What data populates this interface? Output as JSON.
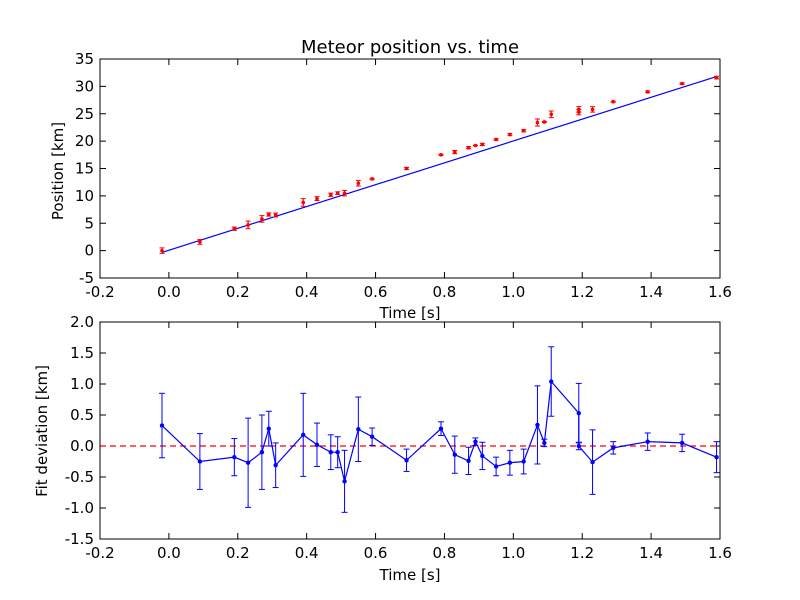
{
  "chart_data": [
    {
      "type": "scatter",
      "title": "Meteor position vs. time",
      "xlabel": "Time [s]",
      "ylabel": "Position [km]",
      "xlim": [
        -0.2,
        1.6
      ],
      "ylim": [
        -5,
        35
      ],
      "xticks": [
        "-0.2",
        "0.0",
        "0.2",
        "0.4",
        "0.6",
        "0.8",
        "1.0",
        "1.2",
        "1.4",
        "1.6"
      ],
      "yticks": [
        "-5",
        "0",
        "5",
        "10",
        "15",
        "20",
        "25",
        "30",
        "35"
      ],
      "grid": false,
      "colors": {
        "points": "#ff0000",
        "fit": "#0000ff"
      },
      "fit_line": {
        "x": [
          -0.02,
          1.59
        ],
        "y": [
          -0.33,
          31.8
        ]
      },
      "series": [
        {
          "x": [
            -0.02,
            0.09,
            0.19,
            0.23,
            0.27,
            0.29,
            0.31,
            0.39,
            0.43,
            0.47,
            0.49,
            0.51,
            0.55,
            0.59,
            0.69,
            0.79,
            0.83,
            0.87,
            0.89,
            0.91,
            0.95,
            0.99,
            1.03,
            1.07,
            1.09,
            1.11,
            1.19,
            1.19,
            1.23,
            1.29,
            1.39,
            1.49,
            1.59
          ],
          "y": [
            0.0,
            1.6,
            4.0,
            4.7,
            5.8,
            6.6,
            6.5,
            8.8,
            9.5,
            10.2,
            10.5,
            10.5,
            12.3,
            13.1,
            15.0,
            17.5,
            18.0,
            18.8,
            19.2,
            19.4,
            20.3,
            21.2,
            21.9,
            23.4,
            23.5,
            24.9,
            25.3,
            25.8,
            25.8,
            27.2,
            29.0,
            30.5,
            31.6
          ],
          "errors": [
            0.5,
            0.45,
            0.3,
            0.7,
            0.6,
            0.3,
            0.35,
            0.7,
            0.35,
            0.3,
            0.25,
            0.5,
            0.5,
            0.15,
            0.2,
            0.12,
            0.3,
            0.2,
            0.05,
            0.2,
            0.15,
            0.2,
            0.2,
            0.65,
            0.1,
            0.6,
            0.5,
            0.5,
            0.5,
            0.1,
            0.15,
            0.15,
            0.25
          ]
        }
      ]
    },
    {
      "type": "line",
      "xlabel": "Time [s]",
      "ylabel": "Fit deviation [km]",
      "xlim": [
        -0.2,
        1.6
      ],
      "ylim": [
        -1.5,
        2.0
      ],
      "xticks": [
        "-0.2",
        "0.0",
        "0.2",
        "0.4",
        "0.6",
        "0.8",
        "1.0",
        "1.2",
        "1.4",
        "1.6"
      ],
      "yticks": [
        "-1.5",
        "-1.0",
        "-0.5",
        "0.0",
        "0.5",
        "1.0",
        "1.5",
        "2.0"
      ],
      "grid": false,
      "reference_line": {
        "y": 0,
        "style": "dashed",
        "color": "#ff0000"
      },
      "colors": {
        "series": "#0000ff"
      },
      "series": [
        {
          "x": [
            -0.02,
            0.09,
            0.19,
            0.23,
            0.27,
            0.29,
            0.31,
            0.39,
            0.43,
            0.47,
            0.49,
            0.51,
            0.55,
            0.59,
            0.69,
            0.79,
            0.83,
            0.87,
            0.89,
            0.91,
            0.95,
            0.99,
            1.03,
            1.07,
            1.09,
            1.11,
            1.19,
            1.19,
            1.23,
            1.29,
            1.39,
            1.49,
            1.59
          ],
          "y": [
            0.33,
            -0.25,
            -0.18,
            -0.27,
            -0.1,
            0.28,
            -0.31,
            0.18,
            0.02,
            -0.1,
            -0.1,
            -0.57,
            0.27,
            0.15,
            -0.23,
            0.28,
            -0.14,
            -0.24,
            0.07,
            -0.16,
            -0.33,
            -0.27,
            -0.25,
            0.34,
            0.05,
            1.04,
            0.53,
            0.0,
            -0.26,
            -0.03,
            0.07,
            0.05,
            -0.18
          ],
          "errors": [
            0.52,
            0.45,
            0.3,
            0.72,
            0.6,
            0.28,
            0.36,
            0.67,
            0.35,
            0.28,
            0.25,
            0.5,
            0.52,
            0.14,
            0.18,
            0.11,
            0.3,
            0.22,
            0.06,
            0.22,
            0.15,
            0.2,
            0.2,
            0.63,
            0.06,
            0.56,
            0.48,
            0.06,
            0.52,
            0.1,
            0.14,
            0.14,
            0.25
          ]
        }
      ]
    }
  ]
}
